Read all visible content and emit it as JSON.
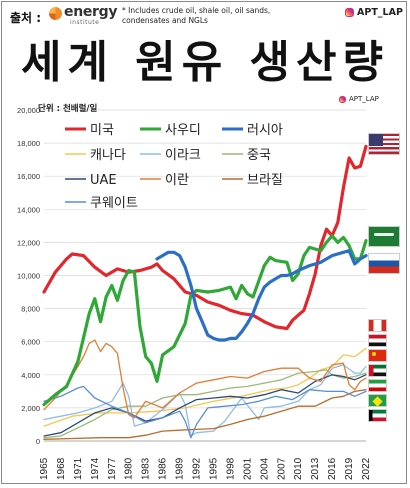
{
  "header": {
    "source_label": "출처 :",
    "logo_name": "energy",
    "logo_sub": "institute",
    "note": "* Includes crude oil, shale oil, oil sands, condensates and NGLs",
    "instagram": "APT_LAP"
  },
  "title": "세계 원유 생산량",
  "watermark": "APT_LAP",
  "colors": {
    "usa": "#e3262b",
    "saudi": "#2ea836",
    "russia": "#2a6ec6",
    "canada": "#f2c84e",
    "iraq": "#8fbde6",
    "china": "#9aba78",
    "uae": "#2b4a7a",
    "iran": "#e67b33",
    "brazil": "#b86c2c",
    "kuwait": "#5a8ed6"
  },
  "chart_data": {
    "type": "line",
    "title": "세계 원유 생산량",
    "unit_label": "단위 : 천배럴/일",
    "xlabel": "",
    "ylabel": "",
    "x_ticks": [
      1965,
      1968,
      1971,
      1974,
      1977,
      1980,
      1983,
      1986,
      1989,
      1992,
      1995,
      1998,
      2001,
      2004,
      2007,
      2010,
      2013,
      2016,
      2019,
      2022
    ],
    "xlim": [
      1965,
      2022
    ],
    "ylim": [
      0,
      20000
    ],
    "y_ticks": [
      0,
      2000,
      4000,
      6000,
      8000,
      10000,
      12000,
      14000,
      16000,
      18000,
      20000
    ],
    "y_tick_labels": [
      "0",
      "2,000",
      "4,000",
      "6,000",
      "8,000",
      "10,000",
      "12,000",
      "14,000",
      "16,000",
      "18,000",
      "20,000"
    ],
    "grid": "horizontal",
    "legend_position": "top-left inside",
    "series": [
      {
        "key": "usa",
        "name": "미국",
        "thick": true,
        "x": [
          1965,
          1967,
          1969,
          1970,
          1972,
          1974,
          1976,
          1978,
          1980,
          1982,
          1984,
          1985,
          1986,
          1988,
          1990,
          1992,
          1994,
          1996,
          1998,
          2000,
          2002,
          2004,
          2006,
          2008,
          2009,
          2010,
          2011,
          2012,
          2013,
          2014,
          2015,
          2016,
          2017,
          2018,
          2019,
          2020,
          2021,
          2022
        ],
        "values": [
          9000,
          10200,
          11000,
          11300,
          11200,
          10500,
          10000,
          10400,
          10200,
          10300,
          10500,
          10700,
          10300,
          9800,
          9000,
          8800,
          8400,
          8200,
          7900,
          7700,
          7600,
          7200,
          6900,
          6800,
          7300,
          7600,
          7900,
          8900,
          10100,
          11800,
          12800,
          12400,
          13200,
          15300,
          17100,
          16500,
          16600,
          17800
        ]
      },
      {
        "key": "saudi",
        "name": "사우디",
        "thick": true,
        "x": [
          1965,
          1967,
          1969,
          1971,
          1973,
          1974,
          1975,
          1976,
          1977,
          1978,
          1979,
          1980,
          1981,
          1982,
          1983,
          1984,
          1985,
          1986,
          1988,
          1990,
          1991,
          1992,
          1994,
          1996,
          1998,
          1999,
          2000,
          2001,
          2002,
          2004,
          2005,
          2006,
          2008,
          2009,
          2010,
          2011,
          2012,
          2014,
          2015,
          2016,
          2017,
          2018,
          2019,
          2020,
          2021,
          2022
        ],
        "values": [
          2200,
          2800,
          3300,
          4800,
          7700,
          8600,
          7200,
          8700,
          9400,
          8500,
          9700,
          10300,
          10200,
          6900,
          5100,
          4700,
          3600,
          5200,
          5700,
          7100,
          8800,
          9100,
          9000,
          9100,
          9300,
          8600,
          9400,
          8900,
          8700,
          10600,
          11100,
          10900,
          10800,
          9700,
          10100,
          11200,
          11700,
          11500,
          12000,
          12400,
          12000,
          12300,
          11800,
          11000,
          11000,
          12100
        ]
      },
      {
        "key": "russia",
        "name": "러시아",
        "thick": true,
        "x": [
          1985,
          1986,
          1987,
          1988,
          1989,
          1990,
          1991,
          1992,
          1993,
          1994,
          1995,
          1996,
          1997,
          1998,
          1999,
          2000,
          2001,
          2002,
          2003,
          2004,
          2005,
          2006,
          2007,
          2008,
          2009,
          2010,
          2012,
          2014,
          2016,
          2018,
          2019,
          2020,
          2021,
          2022
        ],
        "values": [
          11000,
          11200,
          11400,
          11400,
          11200,
          10500,
          9400,
          8000,
          7200,
          6400,
          6200,
          6100,
          6100,
          6200,
          6200,
          6600,
          7100,
          7700,
          8600,
          9300,
          9600,
          9800,
          10000,
          10000,
          10100,
          10300,
          10600,
          10800,
          11200,
          11400,
          11500,
          10700,
          11000,
          11200
        ]
      },
      {
        "key": "canada",
        "name": "캐나다",
        "x": [
          1965,
          1970,
          1975,
          1980,
          1985,
          1990,
          1995,
          2000,
          2005,
          2008,
          2010,
          2012,
          2014,
          2016,
          2018,
          2020,
          2022
        ],
        "values": [
          900,
          1500,
          1700,
          1700,
          1800,
          2000,
          2400,
          2700,
          3100,
          3200,
          3400,
          3800,
          4300,
          4500,
          5200,
          5100,
          5600
        ]
      },
      {
        "key": "iraq",
        "name": "이라크",
        "x": [
          1965,
          1968,
          1971,
          1974,
          1977,
          1979,
          1980,
          1981,
          1983,
          1986,
          1989,
          1990,
          1991,
          1992,
          1995,
          1997,
          2000,
          2003,
          2004,
          2007,
          2010,
          2012,
          2014,
          2016,
          2018,
          2020,
          2021,
          2022
        ],
        "values": [
          1300,
          1500,
          1700,
          2000,
          2400,
          3500,
          2700,
          900,
          1100,
          1900,
          2900,
          2200,
          300,
          500,
          600,
          1200,
          2600,
          1300,
          2000,
          2100,
          2400,
          3100,
          3400,
          4400,
          4600,
          4100,
          4100,
          4500
        ]
      },
      {
        "key": "china",
        "name": "중국",
        "x": [
          1965,
          1968,
          1971,
          1974,
          1977,
          1980,
          1983,
          1986,
          1989,
          1992,
          1995,
          1998,
          2001,
          2004,
          2007,
          2010,
          2013,
          2015,
          2016,
          2018,
          2020,
          2022
        ],
        "values": [
          200,
          300,
          800,
          1300,
          1900,
          2100,
          2100,
          2600,
          2800,
          2800,
          3000,
          3200,
          3300,
          3500,
          3700,
          4100,
          4200,
          4300,
          4000,
          3800,
          3900,
          4100
        ]
      },
      {
        "key": "uae",
        "name": "UAE",
        "x": [
          1965,
          1968,
          1971,
          1974,
          1977,
          1980,
          1983,
          1986,
          1989,
          1992,
          1995,
          1998,
          2001,
          2004,
          2007,
          2010,
          2013,
          2016,
          2018,
          2020,
          2022
        ],
        "values": [
          300,
          500,
          1100,
          1700,
          2000,
          1700,
          1200,
          1400,
          2000,
          2500,
          2600,
          2700,
          2600,
          2800,
          3100,
          2900,
          3600,
          4000,
          3900,
          3700,
          4000
        ]
      },
      {
        "key": "iran",
        "name": "이란",
        "x": [
          1965,
          1967,
          1969,
          1971,
          1972,
          1973,
          1974,
          1975,
          1976,
          1977,
          1978,
          1979,
          1980,
          1981,
          1983,
          1986,
          1989,
          1992,
          1995,
          1998,
          2001,
          2004,
          2007,
          2010,
          2012,
          2014,
          2016,
          2018,
          2019,
          2020,
          2021,
          2022
        ],
        "values": [
          1900,
          2600,
          3400,
          4500,
          5100,
          5900,
          6100,
          5400,
          5900,
          5700,
          5300,
          3200,
          1600,
          1400,
          2400,
          2000,
          2900,
          3500,
          3700,
          3900,
          3800,
          4200,
          4400,
          4400,
          3800,
          3600,
          4600,
          4700,
          3400,
          3100,
          3600,
          3800
        ]
      },
      {
        "key": "brazil",
        "name": "브라질",
        "x": [
          1965,
          1970,
          1975,
          1980,
          1983,
          1986,
          1989,
          1992,
          1995,
          1998,
          2001,
          2004,
          2007,
          2010,
          2013,
          2016,
          2018,
          2020,
          2022
        ],
        "values": [
          100,
          150,
          200,
          200,
          350,
          600,
          650,
          700,
          750,
          1000,
          1300,
          1500,
          1800,
          2100,
          2100,
          2600,
          2700,
          3000,
          3100
        ]
      },
      {
        "key": "kuwait",
        "name": "쿠웨이트",
        "x": [
          1965,
          1968,
          1971,
          1972,
          1974,
          1977,
          1980,
          1983,
          1986,
          1989,
          1990,
          1991,
          1992,
          1994,
          1997,
          2000,
          2003,
          2006,
          2009,
          2012,
          2015,
          2018,
          2020,
          2022
        ],
        "values": [
          2400,
          2700,
          3200,
          3300,
          2600,
          2100,
          1700,
          1100,
          1400,
          1800,
          1200,
          200,
          1000,
          2000,
          2100,
          2200,
          2400,
          2700,
          2500,
          3100,
          3000,
          3000,
          2700,
          3000
        ]
      }
    ]
  },
  "flags": [
    "usa",
    "saudi",
    "russia",
    "canada",
    "iraq",
    "china",
    "uae",
    "iran",
    "brazil",
    "kuwait"
  ]
}
